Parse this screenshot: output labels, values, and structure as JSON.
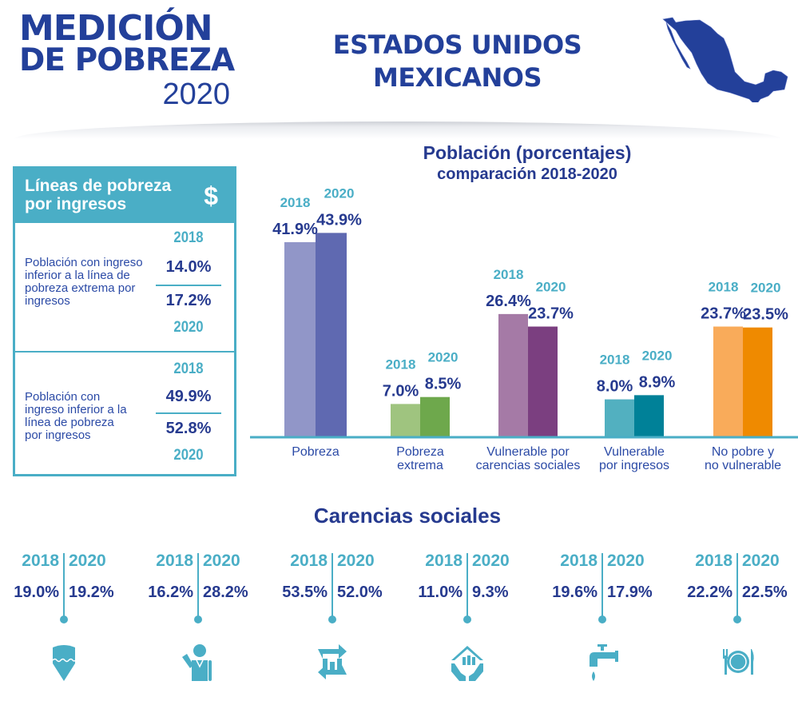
{
  "header": {
    "logo": {
      "line1": "MEDICIÓN",
      "line2": "DE POBREZA",
      "line3": "2020"
    },
    "country_title": "ESTADOS UNIDOS MEXICANOS",
    "map_icon": "mexico-map-icon"
  },
  "colors": {
    "primary_blue": "#263a8f",
    "accent_teal": "#4aaec6",
    "pobreza": [
      "#9196c8",
      "#5f69b1"
    ],
    "pobreza_extrema": [
      "#9fc47f",
      "#6ea84c"
    ],
    "vulnerable_carencias": [
      "#a57aa6",
      "#7b3f80"
    ],
    "vulnerable_ingresos": [
      "#52b0c0",
      "#008198"
    ],
    "no_pobre": [
      "#f9ab5a",
      "#ef8a00"
    ]
  },
  "income_panel": {
    "title": "Líneas de pobreza\npor ingresos",
    "icon": "dollar-icon",
    "rows": [
      {
        "label": "Población con ingreso\ninferior a la línea de\npobreza extrema por\ningresos",
        "year_2018": "2018",
        "value_2018": "14.0%",
        "year_2020": "2020",
        "value_2020": "17.2%"
      },
      {
        "label": "Población con\ningreso inferior a la\nlínea de pobreza\npor ingresos",
        "year_2018": "2018",
        "value_2018": "49.9%",
        "year_2020": "2020",
        "value_2020": "52.8%"
      }
    ]
  },
  "chart_data": {
    "type": "bar",
    "title": "Población (porcentajes)",
    "subtitle": "comparación 2018-2020",
    "xlabel": "",
    "ylabel": "",
    "ylim": [
      0,
      45
    ],
    "grid": false,
    "legend": "none",
    "categories": [
      "Pobreza",
      "Pobreza\nextrema",
      "Vulnerable por\ncarencias sociales",
      "Vulnerable\npor ingresos",
      "No pobre y\nno vulnerable"
    ],
    "series": [
      {
        "name": "2018",
        "values": [
          41.9,
          7.0,
          26.4,
          8.0,
          23.7
        ],
        "labels": [
          "41.9%",
          "7.0%",
          "26.4%",
          "8.0%",
          "23.7%"
        ]
      },
      {
        "name": "2020",
        "values": [
          43.9,
          8.5,
          23.7,
          8.9,
          23.5
        ],
        "labels": [
          "43.9%",
          "8.5%",
          "23.7%",
          "8.9%",
          "23.5%"
        ]
      }
    ]
  },
  "carencias": {
    "title": "Carencias sociales",
    "items": [
      {
        "icon": "education-pencil-icon",
        "year_2018": "2018",
        "year_2020": "2020",
        "value_2018": "19.0%",
        "value_2020": "19.2%"
      },
      {
        "icon": "health-doctor-icon",
        "year_2018": "2018",
        "year_2020": "2020",
        "value_2018": "16.2%",
        "value_2020": "28.2%"
      },
      {
        "icon": "social-security-icon",
        "year_2018": "2018",
        "year_2020": "2020",
        "value_2018": "53.5%",
        "value_2020": "52.0%"
      },
      {
        "icon": "housing-quality-icon",
        "year_2018": "2018",
        "year_2020": "2020",
        "value_2018": "11.0%",
        "value_2020": "9.3%"
      },
      {
        "icon": "water-tap-icon",
        "year_2018": "2018",
        "year_2020": "2020",
        "value_2018": "19.6%",
        "value_2020": "17.9%"
      },
      {
        "icon": "food-plate-icon",
        "year_2018": "2018",
        "year_2020": "2020",
        "value_2018": "22.2%",
        "value_2020": "22.5%"
      }
    ]
  }
}
